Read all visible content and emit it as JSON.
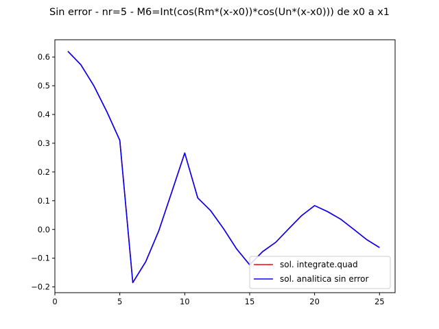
{
  "chart_data": {
    "type": "line",
    "title": "Sin error  - nr=5 - M6=Int(cos(Rm*(x-x0))*cos(Un*(x-x0))) de x0 a x1",
    "xlabel": "",
    "ylabel": "",
    "xlim": [
      0,
      26.2
    ],
    "ylim": [
      -0.22,
      0.66
    ],
    "xticks": [
      0,
      5,
      10,
      15,
      20,
      25
    ],
    "xtick_labels": [
      "0",
      "5",
      "10",
      "15",
      "20",
      "25"
    ],
    "yticks": [
      -0.2,
      -0.1,
      0.0,
      0.1,
      0.2,
      0.3,
      0.4,
      0.5,
      0.6
    ],
    "ytick_labels": [
      "−0.2",
      "−0.1",
      "0.0",
      "0.1",
      "0.2",
      "0.3",
      "0.4",
      "0.5",
      "0.6"
    ],
    "grid": false,
    "legend_position": "lower-right",
    "x": [
      1,
      2,
      3,
      4,
      5,
      6,
      7,
      8,
      9,
      10,
      11,
      12,
      13,
      14,
      15,
      16,
      17,
      18,
      19,
      20,
      21,
      22,
      23,
      24,
      25
    ],
    "series": [
      {
        "name": "sol. integrate.quad",
        "color": "#ff0000",
        "values": [
          0.62,
          0.573,
          0.5,
          0.41,
          0.31,
          -0.185,
          -0.112,
          -0.005,
          0.13,
          0.266,
          0.11,
          0.065,
          0.002,
          -0.068,
          -0.123,
          -0.077,
          -0.045,
          0.002,
          0.048,
          0.083,
          0.062,
          0.036,
          0.001,
          -0.035,
          -0.063
        ]
      },
      {
        "name": "sol. analitica sin error",
        "color": "#0000ff",
        "values": [
          0.62,
          0.573,
          0.5,
          0.41,
          0.31,
          -0.185,
          -0.112,
          -0.005,
          0.13,
          0.266,
          0.11,
          0.065,
          0.002,
          -0.068,
          -0.123,
          -0.077,
          -0.045,
          0.002,
          0.048,
          0.083,
          0.062,
          0.036,
          0.001,
          -0.035,
          -0.063
        ]
      }
    ]
  }
}
